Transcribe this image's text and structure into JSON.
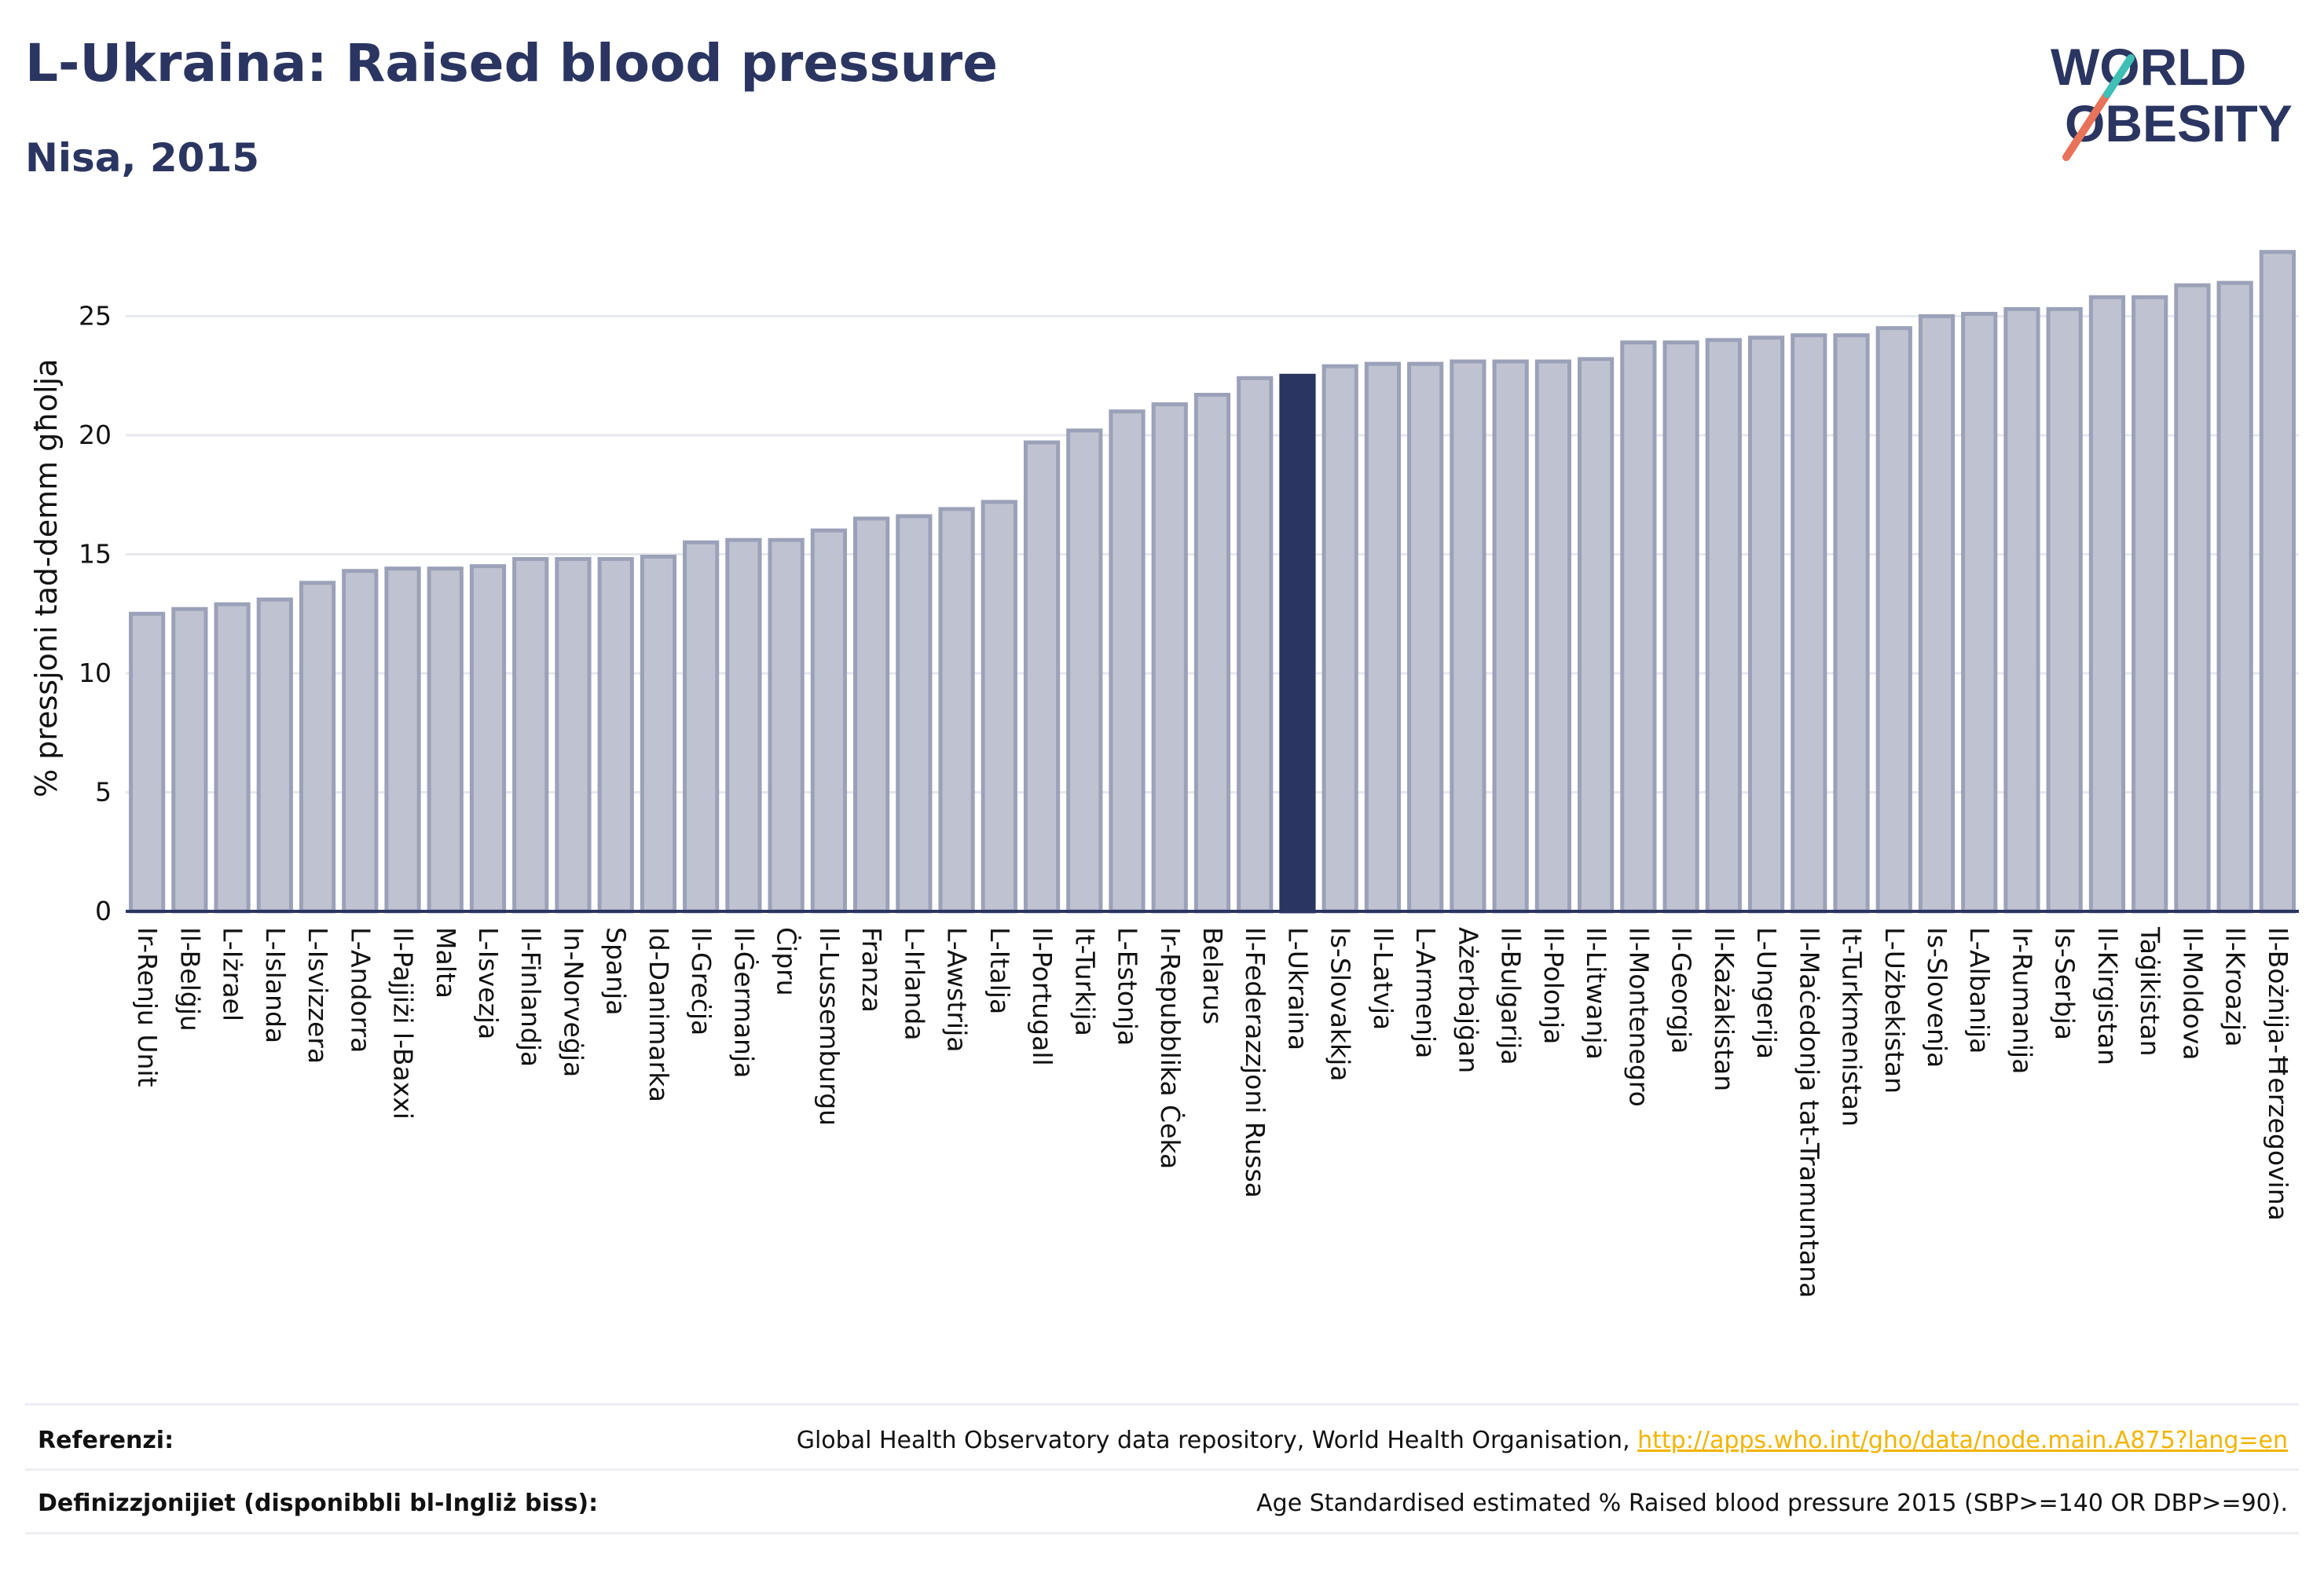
{
  "header": {
    "title": "L-Ukraina: Raised blood pressure",
    "subtitle": "Nisa, 2015"
  },
  "logo": {
    "line1": "WORLD",
    "line2": "OBESITY",
    "slash_colors": [
      "#e8735a",
      "#3fbfb5"
    ]
  },
  "colors": {
    "bar_fill": "#bfc3d1",
    "bar_stroke": "#9ba1b8",
    "highlight": "#2b3561",
    "axis": "#2b3561",
    "grid": "#e6e8ef",
    "text": "#111111"
  },
  "chart_data": {
    "type": "bar",
    "ylabel": "% pressjoni tad-demm għolja",
    "xlabel": "",
    "ylim": [
      0,
      28
    ],
    "yticks": [
      0,
      5,
      10,
      15,
      20,
      25
    ],
    "grid": true,
    "highlight_category": "L-Ukraina",
    "categories": [
      "Ir-Renju Unit",
      "Il-Belġju",
      "L-Iżrael",
      "L-Islanda",
      "L-Isvizzera",
      "L-Andorra",
      "Il-Pajjiżi l-Baxxi",
      "Malta",
      "L-Isvezja",
      "Il-Finlandja",
      "In-Norveġja",
      "Spanja",
      "Id-Danimarka",
      "Il-Greċja",
      "Il-Ġermanja",
      "Ċipru",
      "Il-Lussemburgu",
      "Franza",
      "L-Irlanda",
      "L-Awstrija",
      "L-Italja",
      "Il-Portugall",
      "It-Turkija",
      "L-Estonja",
      "Ir-Repubblika Ċeka",
      "Belarus",
      "Il-Federazzjoni Russa",
      "L-Ukraina",
      "Is-Slovakkja",
      "Il-Latvja",
      "L-Armenja",
      "Ażerbajġan",
      "Il-Bulgarija",
      "Il-Polonja",
      "Il-Litwanja",
      "Il-Montenegro",
      "Il-Georgja",
      "Il-Każakistan",
      "L-Ungerija",
      "Il-Maċedonja tat-Tramuntana",
      "It-Turkmenistan",
      "L-Użbekistan",
      "Is-Slovenja",
      "L-Albanija",
      "Ir-Rumanija",
      "Is-Serbja",
      "Il-Kirgistan",
      "Taġikistan",
      "Il-Moldova",
      "Il-Kroazja",
      "Il-Bożnija-Ħerzegovina"
    ],
    "values": [
      12.5,
      12.7,
      12.9,
      13.1,
      13.8,
      14.3,
      14.4,
      14.4,
      14.5,
      14.8,
      14.8,
      14.8,
      14.9,
      15.5,
      15.6,
      15.6,
      16.0,
      16.5,
      16.6,
      16.9,
      17.2,
      19.7,
      20.2,
      21.0,
      21.3,
      21.7,
      22.4,
      22.5,
      22.9,
      23.0,
      23.0,
      23.1,
      23.1,
      23.1,
      23.2,
      23.9,
      23.9,
      24.0,
      24.1,
      24.2,
      24.2,
      24.5,
      25.0,
      25.1,
      25.3,
      25.3,
      25.8,
      25.8,
      26.3,
      26.4,
      27.7
    ]
  },
  "footer": {
    "references_label": "Referenzi:",
    "references_text": "Global Health Observatory data repository, World Health Organisation, ",
    "references_link": "http://apps.who.int/gho/data/node.main.A875?lang=en",
    "definitions_label": "Definizzjonijiet (disponibbli bl-Ingliż biss):",
    "definitions_text": "Age Standardised estimated % Raised blood pressure 2015 (SBP>=140 OR DBP>=90)."
  }
}
